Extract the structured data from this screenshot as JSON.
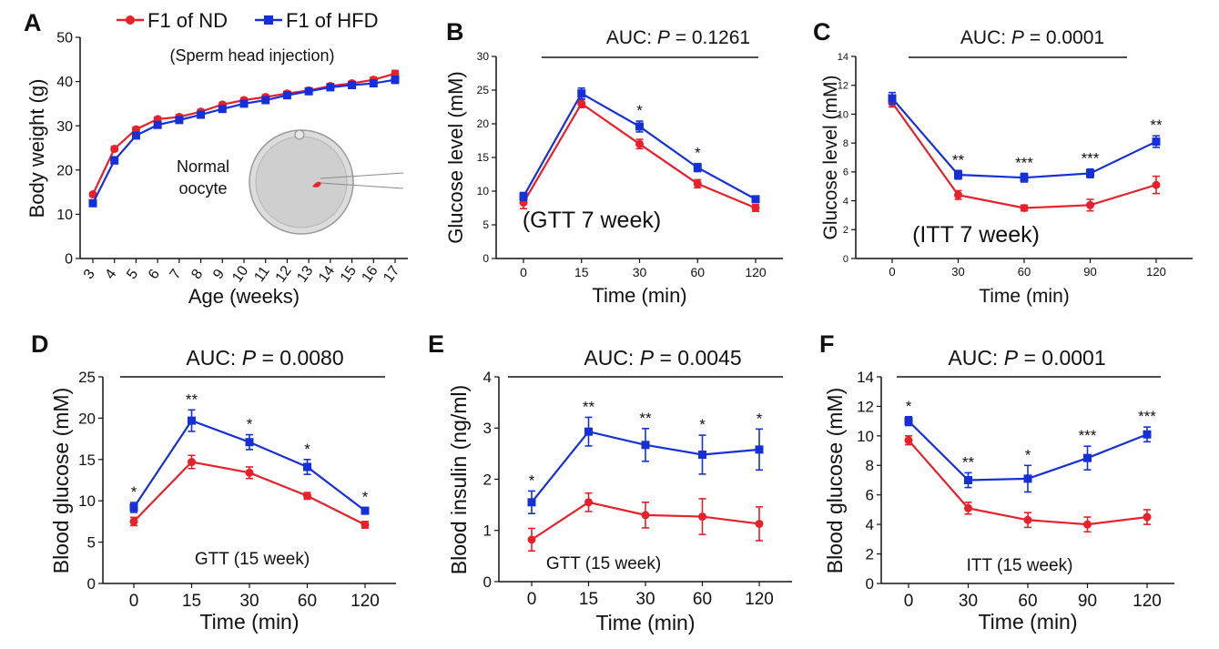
{
  "legend": {
    "nd": "F1 of ND",
    "hfd": "F1 of HFD",
    "nd_color": "#e8202a",
    "hfd_color": "#1530d8"
  },
  "chart_data": [
    {
      "panel": "A",
      "type": "line",
      "annotation": "(Sperm head injection)",
      "inset_label_line1": "Normal",
      "inset_label_line2": "oocyte",
      "xlabel": "Age (weeks)",
      "ylabel": "Body weight (g)",
      "ylim": [
        0,
        50
      ],
      "yticks": [
        "0",
        "10",
        "20",
        "30",
        "40",
        "50"
      ],
      "categories": [
        "3",
        "4",
        "5",
        "6",
        "7",
        "8",
        "9",
        "10",
        "11",
        "12",
        "13",
        "14",
        "15",
        "16",
        "17"
      ],
      "series": [
        {
          "name": "F1 of ND",
          "values": [
            14.5,
            24.8,
            29.2,
            31.5,
            32.0,
            33.2,
            34.8,
            35.8,
            36.5,
            37.3,
            38.0,
            39.0,
            39.6,
            40.4,
            41.8
          ],
          "errors": [
            0.4,
            0.5,
            0.5,
            0.5,
            0.5,
            0.5,
            0.5,
            0.5,
            0.5,
            0.5,
            0.5,
            0.5,
            0.5,
            0.6,
            0.7
          ]
        },
        {
          "name": "F1 of HFD",
          "values": [
            12.5,
            22.2,
            27.8,
            30.2,
            31.3,
            32.5,
            33.8,
            35.0,
            35.8,
            36.9,
            37.8,
            38.7,
            39.2,
            39.6,
            40.4
          ],
          "errors": [
            0.6,
            0.8,
            0.6,
            0.6,
            0.6,
            0.6,
            0.6,
            0.6,
            0.6,
            0.6,
            0.6,
            0.6,
            0.7,
            0.7,
            0.8
          ]
        }
      ]
    },
    {
      "panel": "B",
      "type": "line",
      "auc_prefix": "AUC: ",
      "auc_p": "P",
      "auc_value": " = 0.1261",
      "annotation": "(GTT 7 week)",
      "xlabel": "Time (min)",
      "ylabel": "Glucose level (mM)",
      "ylim": [
        0,
        30
      ],
      "yticks": [
        "0",
        "5",
        "10",
        "15",
        "20",
        "25",
        "30"
      ],
      "categories": [
        "0",
        "15",
        "30",
        "60",
        "120"
      ],
      "significance": [
        "",
        "",
        "*",
        "*",
        ""
      ],
      "series": [
        {
          "name": "F1 of ND",
          "values": [
            8.3,
            23.0,
            17.0,
            11.1,
            7.5
          ],
          "errors": [
            0.9,
            0.6,
            0.7,
            0.6,
            0.5
          ]
        },
        {
          "name": "F1 of HFD",
          "values": [
            9.2,
            24.5,
            19.6,
            13.5,
            8.8
          ],
          "errors": [
            0.6,
            0.8,
            0.8,
            0.6,
            0.4
          ]
        }
      ]
    },
    {
      "panel": "C",
      "type": "line",
      "auc_prefix": "AUC: ",
      "auc_p": "P",
      "auc_value": " = 0.0001",
      "annotation": "(ITT 7 week)",
      "xlabel": "Time (min)",
      "ylabel": "Glucose level (mM)",
      "ylim": [
        0,
        14
      ],
      "yticks": [
        "0",
        "2",
        "4",
        "6",
        "8",
        "10",
        "12",
        "14"
      ],
      "categories": [
        "0",
        "30",
        "60",
        "90",
        "120"
      ],
      "significance": [
        "",
        "**",
        "***",
        "***",
        "**"
      ],
      "series": [
        {
          "name": "F1 of ND",
          "values": [
            10.8,
            4.4,
            3.5,
            3.7,
            5.1
          ],
          "errors": [
            0.3,
            0.3,
            0.2,
            0.4,
            0.6
          ]
        },
        {
          "name": "F1 of HFD",
          "values": [
            11.1,
            5.8,
            5.6,
            5.9,
            8.1
          ],
          "errors": [
            0.4,
            0.3,
            0.3,
            0.3,
            0.4
          ]
        }
      ]
    },
    {
      "panel": "D",
      "type": "line",
      "auc_prefix": "AUC: ",
      "auc_p": "P",
      "auc_value": " = 0.0080",
      "annotation": "GTT (15 week)",
      "xlabel": "Time (min)",
      "ylabel": "Blood glucose (mM)",
      "ylim": [
        0,
        25
      ],
      "yticks": [
        "0",
        "5",
        "10",
        "15",
        "20",
        "25"
      ],
      "categories": [
        "0",
        "15",
        "30",
        "60",
        "120"
      ],
      "significance": [
        "*",
        "**",
        "*",
        "*",
        "*"
      ],
      "series": [
        {
          "name": "F1 of ND",
          "values": [
            7.5,
            14.7,
            13.4,
            10.6,
            7.1
          ],
          "errors": [
            0.5,
            0.8,
            0.7,
            0.4,
            0.4
          ]
        },
        {
          "name": "F1 of HFD",
          "values": [
            9.2,
            19.7,
            17.1,
            14.1,
            8.8
          ],
          "errors": [
            0.6,
            1.3,
            0.9,
            0.9,
            0.4
          ]
        }
      ]
    },
    {
      "panel": "E",
      "type": "line",
      "auc_prefix": "AUC: ",
      "auc_p": "P",
      "auc_value": " = 0.0045",
      "annotation": "GTT (15 week)",
      "xlabel": "Time (min)",
      "ylabel": "Blood insulin (ng/ml)",
      "ylim": [
        0,
        4
      ],
      "yticks": [
        "0",
        "1",
        "2",
        "3",
        "4"
      ],
      "categories": [
        "0",
        "15",
        "30",
        "60",
        "120"
      ],
      "significance": [
        "*",
        "**",
        "**",
        "*",
        "*"
      ],
      "series": [
        {
          "name": "F1 of ND",
          "values": [
            0.82,
            1.55,
            1.3,
            1.27,
            1.13
          ],
          "errors": [
            0.22,
            0.18,
            0.25,
            0.35,
            0.33
          ]
        },
        {
          "name": "F1 of HFD",
          "values": [
            1.55,
            2.93,
            2.67,
            2.48,
            2.58
          ],
          "errors": [
            0.22,
            0.28,
            0.32,
            0.38,
            0.4
          ]
        }
      ]
    },
    {
      "panel": "F",
      "type": "line",
      "auc_prefix": "AUC: ",
      "auc_p": "P",
      "auc_value": " = 0.0001",
      "annotation": "ITT (15 week)",
      "xlabel": "Time (min)",
      "ylabel": "Blood glucose (mM)",
      "ylim": [
        0,
        14
      ],
      "yticks": [
        "0",
        "2",
        "4",
        "6",
        "8",
        "10",
        "12",
        "14"
      ],
      "categories": [
        "0",
        "30",
        "60",
        "90",
        "120"
      ],
      "significance": [
        "*",
        "**",
        "*",
        "***",
        "***"
      ],
      "series": [
        {
          "name": "F1 of ND",
          "values": [
            9.7,
            5.1,
            4.3,
            4.0,
            4.5
          ],
          "errors": [
            0.3,
            0.4,
            0.5,
            0.5,
            0.5
          ]
        },
        {
          "name": "F1 of HFD",
          "values": [
            11.0,
            7.0,
            7.1,
            8.5,
            10.1
          ],
          "errors": [
            0.3,
            0.5,
            0.9,
            0.8,
            0.5
          ]
        }
      ]
    }
  ]
}
